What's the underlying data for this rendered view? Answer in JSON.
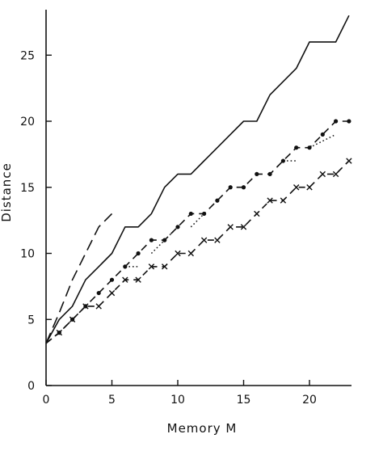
{
  "chart_data": {
    "type": "line",
    "title": "",
    "xlabel": "Memory  M",
    "ylabel": "Distance",
    "xlim": [
      0,
      23.5
    ],
    "ylim": [
      0,
      28.5
    ],
    "x_ticks": [
      0,
      5,
      10,
      15,
      20
    ],
    "y_ticks": [
      0,
      5,
      10,
      15,
      20,
      25
    ],
    "grid": false,
    "legend": "none",
    "series": [
      {
        "style": "long-dash",
        "points": [
          [
            0,
            3.2
          ],
          [
            1,
            5.5
          ],
          [
            2,
            8
          ],
          [
            3,
            10
          ],
          [
            4,
            12
          ],
          [
            5,
            13
          ]
        ]
      },
      {
        "style": "solid",
        "points": [
          [
            0,
            3.2
          ],
          [
            1,
            5
          ],
          [
            2,
            6
          ],
          [
            3,
            8
          ],
          [
            4,
            9
          ],
          [
            5,
            10
          ],
          [
            6,
            12
          ],
          [
            7,
            12
          ],
          [
            8,
            13
          ],
          [
            9,
            15
          ],
          [
            10,
            16
          ],
          [
            11,
            16
          ],
          [
            12,
            17
          ],
          [
            13,
            18
          ],
          [
            14,
            19
          ],
          [
            15,
            20
          ],
          [
            16,
            20
          ],
          [
            17,
            22
          ],
          [
            18,
            23
          ],
          [
            19,
            24
          ],
          [
            20,
            26
          ],
          [
            21,
            26
          ],
          [
            22,
            26
          ],
          [
            23,
            28
          ]
        ]
      },
      {
        "style": "dash-dot-markers",
        "marker": "dot",
        "points": [
          [
            0,
            3.2
          ],
          [
            1,
            4
          ],
          [
            2,
            5
          ],
          [
            3,
            6
          ],
          [
            4,
            7
          ],
          [
            5,
            8
          ],
          [
            6,
            9
          ],
          [
            7,
            10
          ],
          [
            8,
            11
          ],
          [
            9,
            11
          ],
          [
            10,
            12
          ],
          [
            11,
            13
          ],
          [
            12,
            13
          ],
          [
            13,
            14
          ],
          [
            14,
            15
          ],
          [
            15,
            15
          ],
          [
            16,
            16
          ],
          [
            17,
            16
          ],
          [
            18,
            17
          ],
          [
            19,
            18
          ],
          [
            20,
            18
          ],
          [
            21,
            19
          ],
          [
            22,
            20
          ],
          [
            23,
            20
          ]
        ]
      },
      {
        "style": "dotted",
        "points": [
          [
            6,
            9
          ],
          [
            7,
            9
          ],
          [
            8,
            10
          ],
          [
            10,
            12
          ],
          [
            11,
            12
          ],
          [
            12,
            13
          ],
          [
            18,
            17
          ],
          [
            19,
            17
          ],
          [
            20,
            18
          ],
          [
            22,
            19
          ]
        ]
      },
      {
        "style": "dash-x-markers",
        "marker": "x",
        "points": [
          [
            0,
            3.2
          ],
          [
            1,
            4
          ],
          [
            2,
            5
          ],
          [
            3,
            6
          ],
          [
            4,
            6
          ],
          [
            5,
            7
          ],
          [
            6,
            8
          ],
          [
            7,
            8
          ],
          [
            8,
            9
          ],
          [
            9,
            9
          ],
          [
            10,
            10
          ],
          [
            11,
            10
          ],
          [
            12,
            11
          ],
          [
            13,
            11
          ],
          [
            14,
            12
          ],
          [
            15,
            12
          ],
          [
            16,
            13
          ],
          [
            17,
            14
          ],
          [
            18,
            14
          ],
          [
            19,
            15
          ],
          [
            20,
            15
          ],
          [
            21,
            16
          ],
          [
            22,
            16
          ],
          [
            23,
            17
          ]
        ]
      }
    ]
  }
}
